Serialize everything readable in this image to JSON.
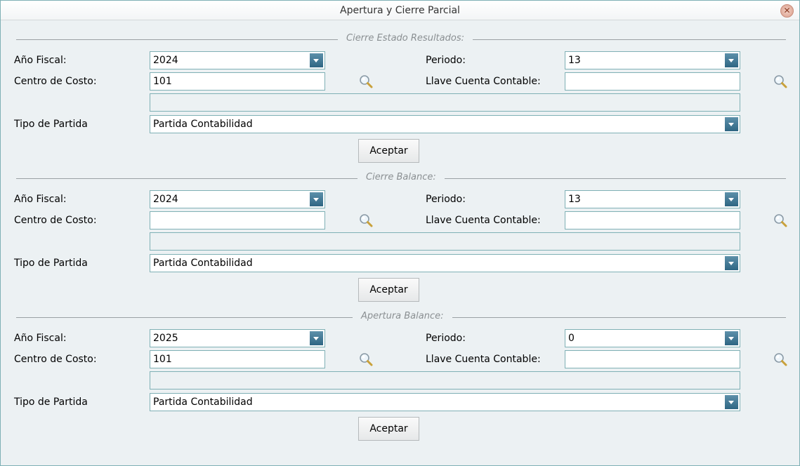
{
  "window": {
    "title": "Apertura y Cierre Parcial",
    "close_icon": "close-icon"
  },
  "labels": {
    "anio": "Año Fiscal:",
    "periodo": "Periodo:",
    "centro": "Centro de Costo:",
    "llave": "Llave Cuenta Contable:",
    "tipo": "Tipo de Partida",
    "aceptar": "Aceptar"
  },
  "sections": [
    {
      "legend": "Cierre Estado Resultados:",
      "anio": "2024",
      "periodo": "13",
      "centro": "101",
      "llave": "",
      "descripcion": "",
      "tipo": "Partida Contabilidad"
    },
    {
      "legend": "Cierre Balance:",
      "anio": "2024",
      "periodo": "13",
      "centro": "",
      "llave": "",
      "descripcion": "",
      "tipo": "Partida Contabilidad"
    },
    {
      "legend": "Apertura Balance:",
      "anio": "2025",
      "periodo": "0",
      "centro": "101",
      "llave": "",
      "descripcion": "",
      "tipo": "Partida Contabilidad"
    }
  ],
  "colors": {
    "accent": "#2f6683",
    "border": "#7fb0b5",
    "background": "#ecf1f3"
  }
}
